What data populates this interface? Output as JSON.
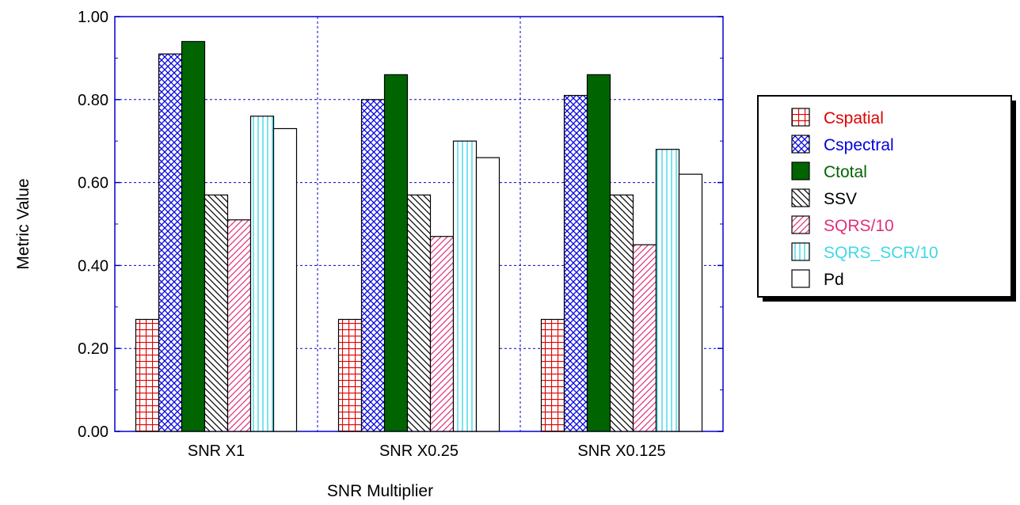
{
  "chart_data": {
    "type": "bar",
    "xlabel": "SNR Multiplier",
    "ylabel": "Metric Value",
    "ylim": [
      0,
      1
    ],
    "yticks": [
      "0.00",
      "0.20",
      "0.40",
      "0.60",
      "0.80",
      "1.00"
    ],
    "categories": [
      "SNR X1",
      "SNR X0.25",
      "SNR X0.125"
    ],
    "grid": true,
    "legend_position": "right",
    "series": [
      {
        "name": "Cspatial",
        "values": [
          0.27,
          0.27,
          0.27
        ],
        "color": "#e00000",
        "pattern": "grid-cross"
      },
      {
        "name": "Cspectral",
        "values": [
          0.91,
          0.8,
          0.81
        ],
        "color": "#0000e0",
        "pattern": "diagonal-cross"
      },
      {
        "name": "Ctotal",
        "values": [
          0.94,
          0.86,
          0.86
        ],
        "color": "#006400",
        "pattern": "solid"
      },
      {
        "name": "SSV",
        "values": [
          0.57,
          0.57,
          0.57
        ],
        "color": "#000000",
        "pattern": "back-diagonal"
      },
      {
        "name": "SQRS/10",
        "values": [
          0.51,
          0.47,
          0.45
        ],
        "color": "#e0307a",
        "pattern": "forward-diagonal"
      },
      {
        "name": "SQRS_SCR/10",
        "values": [
          0.76,
          0.7,
          0.68
        ],
        "color": "#40d8e8",
        "pattern": "vertical-lines"
      },
      {
        "name": "Pd",
        "values": [
          0.73,
          0.66,
          0.62
        ],
        "color": "#000000",
        "pattern": "empty"
      }
    ]
  }
}
